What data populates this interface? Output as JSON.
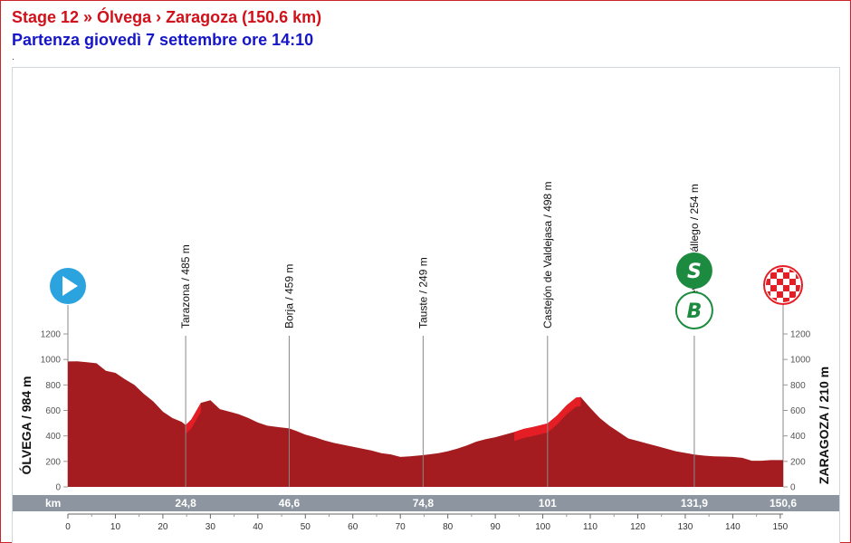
{
  "header": {
    "title": "Stage 12 » Ólvega › Zaragoza (150.6 km)",
    "subtitle": "Partenza giovedì 7 settembre ore 14:10",
    "dot": "."
  },
  "colors": {
    "profile_fill": "#a41c1f",
    "climb_fill": "#e51d24",
    "km_bar": "#8d96a0",
    "sprint_green": "#1d8b3f",
    "finish_red": "#e51d24"
  },
  "chart_data": {
    "type": "area",
    "xlim": [
      0,
      150.6
    ],
    "ylim": [
      0,
      1200
    ],
    "x_ticks": [
      0,
      10,
      20,
      30,
      40,
      50,
      60,
      70,
      80,
      90,
      100,
      110,
      120,
      130,
      140,
      150
    ],
    "y_ticks": [
      0,
      200,
      400,
      600,
      800,
      1000,
      1200
    ],
    "km_bar_label": "km",
    "series": [
      {
        "x": [
          0,
          2,
          4,
          6,
          8,
          10,
          12,
          14,
          16,
          18,
          20,
          22,
          24,
          24.8,
          26,
          28,
          30,
          32,
          34,
          36,
          38,
          40,
          42,
          44,
          46.6,
          48,
          50,
          52,
          54,
          56,
          58,
          60,
          62,
          64,
          66,
          68,
          70,
          72,
          74.8,
          76,
          78,
          80,
          82,
          84,
          86,
          88,
          90,
          92,
          94,
          96,
          98,
          101,
          103,
          105,
          107,
          108,
          110,
          112,
          114,
          116,
          118,
          120,
          122,
          124,
          126,
          128,
          131.9,
          134,
          136,
          138,
          140,
          142,
          144,
          146,
          148,
          150,
          150.6
        ],
        "y": [
          984,
          985,
          978,
          970,
          910,
          895,
          845,
          800,
          730,
          670,
          590,
          540,
          510,
          485,
          530,
          660,
          680,
          610,
          590,
          570,
          540,
          505,
          480,
          470,
          459,
          440,
          410,
          390,
          365,
          345,
          330,
          315,
          300,
          285,
          265,
          255,
          235,
          240,
          249,
          255,
          265,
          280,
          300,
          325,
          355,
          375,
          390,
          410,
          430,
          455,
          470,
          498,
          560,
          640,
          700,
          705,
          620,
          540,
          480,
          430,
          380,
          360,
          340,
          320,
          300,
          280,
          254,
          245,
          240,
          238,
          235,
          228,
          205,
          205,
          210,
          210,
          210
        ]
      }
    ],
    "climbs": [
      [
        24.8,
        29
      ],
      [
        94,
        108
      ]
    ],
    "waypoints": [
      {
        "km": 24.8,
        "km_label": "24,8",
        "label": "Tarazona / 485 m"
      },
      {
        "km": 46.6,
        "km_label": "46,6",
        "label": "Borja / 459 m"
      },
      {
        "km": 74.8,
        "km_label": "74,8",
        "label": "Tauste / 249 m"
      },
      {
        "km": 101,
        "km_label": "101",
        "label": "Castejón de Valdejasa / 498 m"
      },
      {
        "km": 131.9,
        "km_label": "131,9",
        "label": "Villanueva de Gállego / 254 m"
      },
      {
        "km": 150.6,
        "km_label": "150,6",
        "label": ""
      }
    ],
    "start_label": "ÓLVEGA / 984 m",
    "finish_label": "ZARAGOZA / 210 m",
    "sprint_icon_text": "S",
    "bonus_icon_text": "B"
  }
}
